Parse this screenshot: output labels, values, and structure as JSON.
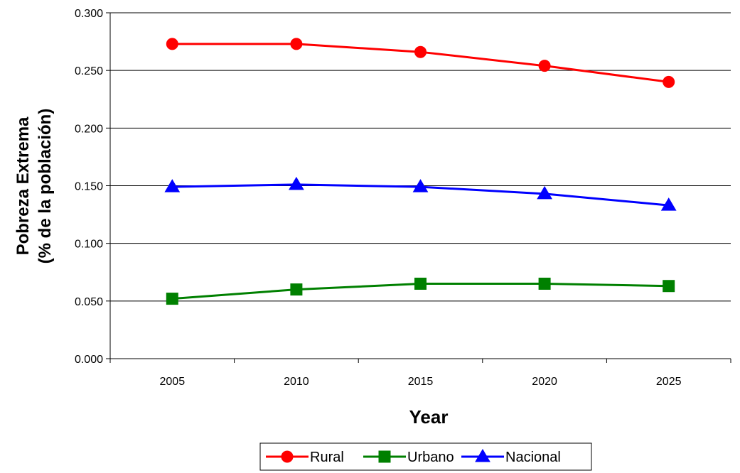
{
  "chart_data": {
    "type": "line",
    "title": "",
    "xlabel": "Year",
    "ylabel_line1": "Pobreza Extrema",
    "ylabel_line2": "(% de la población)",
    "x": [
      "2005",
      "2010",
      "2015",
      "2020",
      "2025"
    ],
    "ylim": [
      0,
      0.3
    ],
    "yticks": [
      "0.000",
      "0.050",
      "0.100",
      "0.150",
      "0.200",
      "0.250",
      "0.300"
    ],
    "grid": true,
    "legend_position": "bottom",
    "series": [
      {
        "name": "Rural",
        "color": "#ff0000",
        "marker": "circle",
        "values": [
          0.273,
          0.273,
          0.266,
          0.254,
          0.24
        ]
      },
      {
        "name": "Urbano",
        "color": "#008000",
        "marker": "square",
        "values": [
          0.052,
          0.06,
          0.065,
          0.065,
          0.063
        ]
      },
      {
        "name": "Nacional",
        "color": "#0000ff",
        "marker": "triangle",
        "values": [
          0.149,
          0.151,
          0.149,
          0.143,
          0.133
        ]
      }
    ]
  }
}
